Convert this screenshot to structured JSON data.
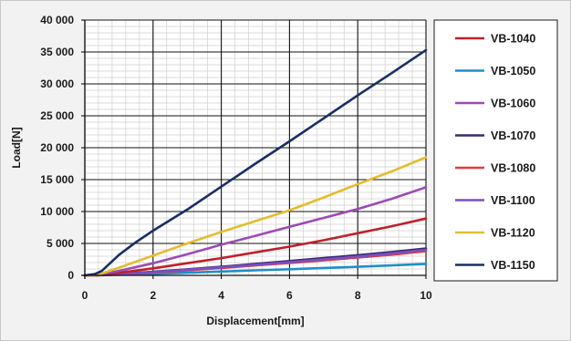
{
  "chart_data": {
    "type": "line",
    "title": "",
    "xlabel": "Displacement[mm]",
    "ylabel": "Load[N]",
    "xlim": [
      0,
      10
    ],
    "ylim": [
      0,
      40000
    ],
    "x_ticks": [
      0,
      2,
      4,
      6,
      8,
      10
    ],
    "x_tick_labels": [
      "0",
      "2",
      "4",
      "6",
      "8",
      "10"
    ],
    "y_ticks": [
      0,
      5000,
      10000,
      15000,
      20000,
      25000,
      30000,
      35000,
      40000
    ],
    "y_tick_labels": [
      "0",
      "5 000",
      "10 000",
      "15 000",
      "20 000",
      "25 000",
      "30 000",
      "35 000",
      "40 000"
    ],
    "grid": true,
    "legend_position": "right",
    "series": [
      {
        "name": "VB-1040",
        "color": "#c0202a",
        "x": [
          0,
          0.3,
          0.5,
          1,
          2,
          3,
          4,
          5,
          6,
          7,
          8,
          9,
          10
        ],
        "y": [
          0,
          0,
          100,
          400,
          1100,
          1900,
          2700,
          3600,
          4500,
          5500,
          6600,
          7700,
          8900
        ]
      },
      {
        "name": "VB-1050",
        "color": "#1f8ec9",
        "x": [
          0,
          0.3,
          0.5,
          1,
          2,
          3,
          4,
          5,
          6,
          7,
          8,
          9,
          10
        ],
        "y": [
          0,
          0,
          30,
          100,
          250,
          420,
          600,
          780,
          960,
          1150,
          1350,
          1550,
          1800
        ]
      },
      {
        "name": "VB-1060",
        "color": "#9b4bb5",
        "x": [
          0,
          0.3,
          0.5,
          1,
          2,
          3,
          4,
          5,
          6,
          7,
          8,
          9,
          10
        ],
        "y": [
          0,
          0,
          200,
          700,
          1900,
          3300,
          4800,
          6200,
          7600,
          9000,
          10400,
          12000,
          13800
        ]
      },
      {
        "name": "VB-1070",
        "color": "#3a2a6e",
        "x": [
          0,
          0.3,
          0.5,
          1,
          2,
          3,
          4,
          5,
          6,
          7,
          8,
          9,
          10
        ],
        "y": [
          0,
          0,
          60,
          200,
          550,
          950,
          1350,
          1800,
          2250,
          2700,
          3150,
          3650,
          4200
        ]
      },
      {
        "name": "VB-1080",
        "color": "#e8393a",
        "x": [
          0,
          0.3,
          0.5,
          1,
          2,
          3,
          4,
          5,
          6,
          7,
          8,
          9,
          10
        ],
        "y": [
          0,
          0,
          40,
          150,
          450,
          800,
          1150,
          1550,
          1950,
          2350,
          2800,
          3250,
          3800
        ]
      },
      {
        "name": "VB-1100",
        "color": "#7a4fc4",
        "x": [
          0,
          0.3,
          0.5,
          1,
          2,
          3,
          4,
          5,
          6,
          7,
          8,
          9,
          10
        ],
        "y": [
          0,
          0,
          50,
          170,
          500,
          880,
          1250,
          1650,
          2050,
          2500,
          2950,
          3450,
          4000
        ]
      },
      {
        "name": "VB-1120",
        "color": "#e3bd2d",
        "x": [
          0,
          0.3,
          0.5,
          1,
          2,
          3,
          4,
          5,
          6,
          7,
          8,
          9,
          10
        ],
        "y": [
          0,
          0,
          300,
          1200,
          3100,
          5000,
          6800,
          8500,
          10200,
          12200,
          14300,
          16300,
          18500
        ]
      },
      {
        "name": "VB-1150",
        "color": "#1b2e63",
        "x": [
          0,
          0.3,
          0.5,
          0.7,
          1,
          1.5,
          2,
          3,
          4,
          5,
          6,
          7,
          8,
          9,
          10
        ],
        "y": [
          0,
          200,
          700,
          1700,
          3200,
          5200,
          7000,
          10300,
          13900,
          17500,
          21000,
          24600,
          28200,
          31700,
          35300
        ]
      }
    ]
  }
}
